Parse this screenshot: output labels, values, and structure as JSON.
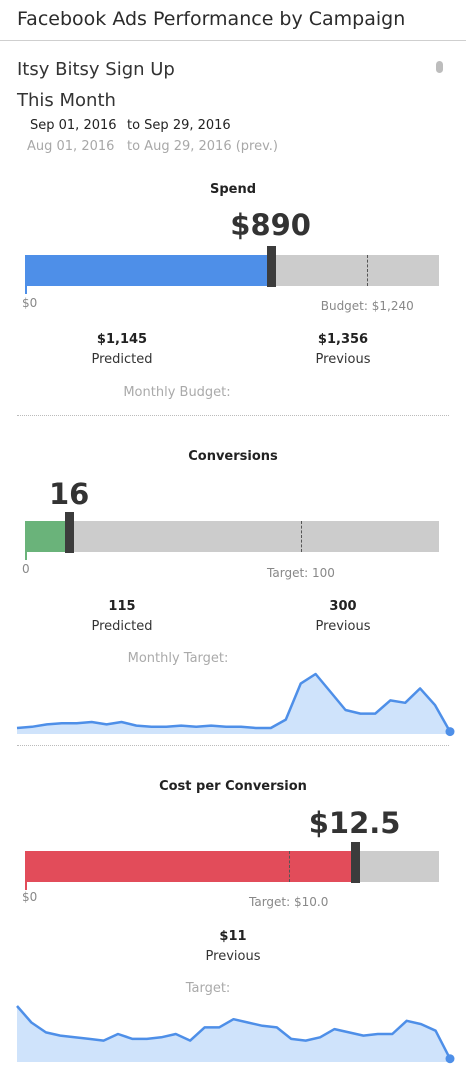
{
  "header": {
    "title": "Facebook Ads Performance by Campaign"
  },
  "campaign": {
    "name": "Itsy Bitsy Sign Up",
    "period": "This Month"
  },
  "dates": {
    "current_from": "Sep 01, 2016",
    "current_to": "to Sep 29, 2016",
    "previous_from": "Aug 01, 2016",
    "previous_to": "to Aug 29, 2016 (prev.)"
  },
  "colors": {
    "spend": "#4e8fe8",
    "conversions": "#6ab37a",
    "cpc": "#e24c5a",
    "spark_line": "#4e8fe8",
    "spark_fill": "#cfe3fb"
  },
  "icons": {
    "menu": "vertical-menu-icon"
  },
  "spend": {
    "title": "Spend",
    "value": "$890",
    "value_num": 890,
    "scale_max": 1500,
    "marker_value": 890,
    "budget_num": 1240,
    "zero": "$0",
    "ref_label": "Budget: $1,240",
    "stats": [
      {
        "value": "$1,145",
        "label": "Predicted"
      },
      {
        "value": "$1,356",
        "label": "Previous"
      }
    ],
    "footer": "Monthly Budget:"
  },
  "conversions": {
    "title": "Conversions",
    "value": "16",
    "value_num": 16,
    "scale_max": 150,
    "marker_value": 16,
    "target_num": 100,
    "zero": "0",
    "ref_label": "Target: 100",
    "stats": [
      {
        "value": "115",
        "label": "Predicted"
      },
      {
        "value": "300",
        "label": "Previous"
      }
    ],
    "footer": "Monthly Target:",
    "sparkline": [
      5,
      6,
      8,
      9,
      9,
      10,
      8,
      10,
      7,
      6,
      6,
      7,
      6,
      7,
      6,
      6,
      5,
      5,
      12,
      42,
      50,
      35,
      20,
      17,
      17,
      28,
      26,
      38,
      24,
      2
    ]
  },
  "cpc": {
    "title": "Cost per Conversion",
    "value": "$12.5",
    "value_num": 12.5,
    "scale_max": 15.7,
    "marker_value": 12.5,
    "target_num": 10,
    "zero": "$0",
    "ref_label": "Target: $10.0",
    "stats": [
      {
        "value": "$11",
        "label": "Previous"
      }
    ],
    "footer": "Target:",
    "sparkline": [
      34,
      24,
      18,
      16,
      15,
      14,
      13,
      17,
      14,
      14,
      15,
      17,
      13,
      21,
      21,
      26,
      24,
      22,
      21,
      14,
      13,
      15,
      20,
      18,
      16,
      17,
      17,
      25,
      23,
      19,
      2
    ]
  }
}
